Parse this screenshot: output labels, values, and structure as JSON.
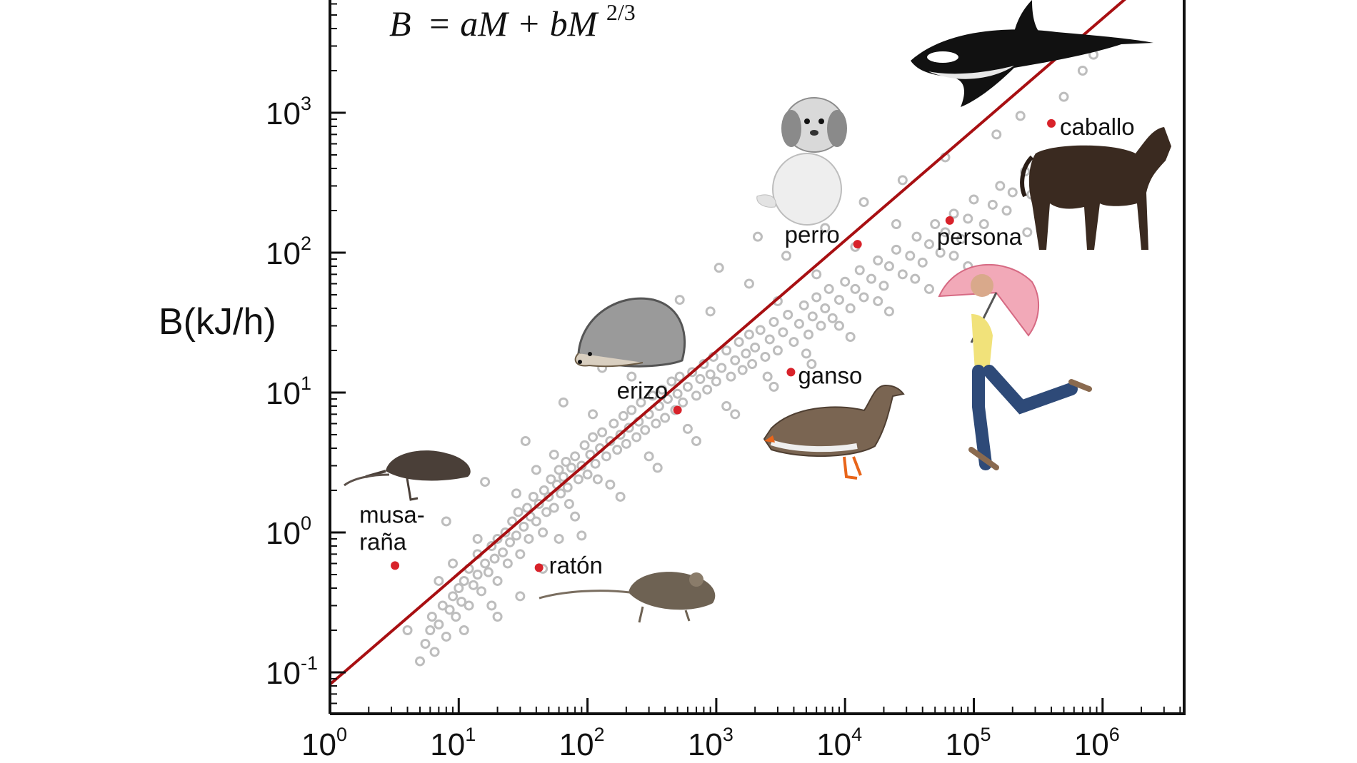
{
  "chart_data": {
    "type": "scatter",
    "title": "",
    "annotation_formula": {
      "lhs": "B",
      "rhs_main": "= aM + bM",
      "exponent": "2/3"
    },
    "ylabel": "B(kJ/h)",
    "xlabel": "",
    "x_scale": "log",
    "y_scale": "log",
    "xlim": [
      1,
      4300000
    ],
    "ylim": [
      0.05,
      15000
    ],
    "grid": false,
    "x_ticks": [
      {
        "value": 1,
        "base": "10",
        "exp": "0"
      },
      {
        "value": 10,
        "base": "10",
        "exp": "1"
      },
      {
        "value": 100,
        "base": "10",
        "exp": "2"
      },
      {
        "value": 1000,
        "base": "10",
        "exp": "3"
      },
      {
        "value": 10000,
        "base": "10",
        "exp": "4"
      },
      {
        "value": 100000,
        "base": "10",
        "exp": "5"
      },
      {
        "value": 1000000,
        "base": "10",
        "exp": "6"
      }
    ],
    "y_ticks": [
      {
        "value": 0.1,
        "base": "10",
        "exp": "-1"
      },
      {
        "value": 1,
        "base": "10",
        "exp": "0"
      },
      {
        "value": 10,
        "base": "10",
        "exp": "1"
      },
      {
        "value": 100,
        "base": "10",
        "exp": "2"
      },
      {
        "value": 1000,
        "base": "10",
        "exp": "3"
      }
    ],
    "fit_line": {
      "color": "#a80f12",
      "points": [
        [
          1,
          0.082
        ],
        [
          4300000,
          15000
        ]
      ]
    },
    "highlighted": [
      {
        "label": "musa-",
        "label2": "raña",
        "x": 3.2,
        "y": 0.58
      },
      {
        "label": "ratón",
        "x": 42,
        "y": 0.56
      },
      {
        "label": "erizo",
        "x": 500,
        "y": 7.5
      },
      {
        "label": "ganso",
        "x": 3800,
        "y": 14
      },
      {
        "label": "perro",
        "x": 12500,
        "y": 115
      },
      {
        "label": "persona",
        "x": 65000,
        "y": 170
      },
      {
        "label": "caballo",
        "x": 400000,
        "y": 840
      }
    ],
    "background_points_color": "#bdbdbd",
    "highlight_color": "#d8222a",
    "background_points": [
      [
        5.0,
        0.12
      ],
      [
        5.5,
        0.16
      ],
      [
        6.0,
        0.2
      ],
      [
        6.2,
        0.25
      ],
      [
        7.0,
        0.22
      ],
      [
        7.5,
        0.3
      ],
      [
        8.0,
        0.18
      ],
      [
        8.5,
        0.28
      ],
      [
        9.0,
        0.35
      ],
      [
        9.5,
        0.25
      ],
      [
        10,
        0.4
      ],
      [
        10.5,
        0.32
      ],
      [
        11,
        0.45
      ],
      [
        12,
        0.3
      ],
      [
        12,
        0.55
      ],
      [
        13,
        0.42
      ],
      [
        14,
        0.5
      ],
      [
        14,
        0.7
      ],
      [
        15,
        0.38
      ],
      [
        16,
        0.6
      ],
      [
        17,
        0.52
      ],
      [
        18,
        0.8
      ],
      [
        19,
        0.65
      ],
      [
        20,
        0.45
      ],
      [
        20,
        0.9
      ],
      [
        22,
        0.72
      ],
      [
        23,
        1.0
      ],
      [
        24,
        0.6
      ],
      [
        25,
        0.85
      ],
      [
        26,
        1.2
      ],
      [
        28,
        0.95
      ],
      [
        29,
        1.4
      ],
      [
        30,
        0.7
      ],
      [
        32,
        1.1
      ],
      [
        34,
        1.5
      ],
      [
        35,
        0.9
      ],
      [
        36,
        1.3
      ],
      [
        38,
        1.8
      ],
      [
        40,
        1.2
      ],
      [
        42,
        1.6
      ],
      [
        45,
        1.0
      ],
      [
        46,
        2.0
      ],
      [
        48,
        1.4
      ],
      [
        50,
        1.8
      ],
      [
        52,
        2.4
      ],
      [
        55,
        1.5
      ],
      [
        58,
        2.2
      ],
      [
        60,
        2.8
      ],
      [
        62,
        1.9
      ],
      [
        65,
        2.5
      ],
      [
        68,
        3.2
      ],
      [
        70,
        2.1
      ],
      [
        72,
        1.6
      ],
      [
        75,
        2.9
      ],
      [
        80,
        3.5
      ],
      [
        85,
        2.4
      ],
      [
        90,
        3.0
      ],
      [
        95,
        4.2
      ],
      [
        100,
        2.6
      ],
      [
        105,
        3.6
      ],
      [
        110,
        4.8
      ],
      [
        115,
        3.1
      ],
      [
        120,
        2.4
      ],
      [
        125,
        4.0
      ],
      [
        130,
        5.2
      ],
      [
        140,
        3.5
      ],
      [
        150,
        4.5
      ],
      [
        160,
        6.0
      ],
      [
        170,
        3.9
      ],
      [
        180,
        5.0
      ],
      [
        190,
        6.8
      ],
      [
        200,
        4.3
      ],
      [
        210,
        5.6
      ],
      [
        220,
        7.5
      ],
      [
        240,
        4.8
      ],
      [
        250,
        6.2
      ],
      [
        260,
        8.5
      ],
      [
        280,
        5.4
      ],
      [
        300,
        7.0
      ],
      [
        320,
        9.5
      ],
      [
        340,
        6.0
      ],
      [
        360,
        8.0
      ],
      [
        380,
        10.5
      ],
      [
        400,
        6.6
      ],
      [
        420,
        9.0
      ],
      [
        450,
        12
      ],
      [
        480,
        7.5
      ],
      [
        500,
        9.8
      ],
      [
        520,
        13
      ],
      [
        550,
        8.5
      ],
      [
        600,
        11
      ],
      [
        650,
        14
      ],
      [
        700,
        9.5
      ],
      [
        750,
        12.5
      ],
      [
        800,
        16
      ],
      [
        850,
        10.5
      ],
      [
        900,
        13.5
      ],
      [
        950,
        18
      ],
      [
        1000,
        12
      ],
      [
        1100,
        15
      ],
      [
        1200,
        20
      ],
      [
        1300,
        13
      ],
      [
        1400,
        17
      ],
      [
        1500,
        23
      ],
      [
        1600,
        14.5
      ],
      [
        1700,
        19
      ],
      [
        1800,
        26
      ],
      [
        1900,
        16
      ],
      [
        2000,
        21
      ],
      [
        2200,
        28
      ],
      [
        2400,
        18
      ],
      [
        2600,
        24
      ],
      [
        2800,
        32
      ],
      [
        3000,
        20
      ],
      [
        3300,
        27
      ],
      [
        3600,
        36
      ],
      [
        4000,
        23
      ],
      [
        4400,
        31
      ],
      [
        4800,
        42
      ],
      [
        5200,
        26
      ],
      [
        5600,
        35
      ],
      [
        6000,
        48
      ],
      [
        6500,
        30
      ],
      [
        7000,
        40
      ],
      [
        7500,
        55
      ],
      [
        8000,
        34
      ],
      [
        9000,
        46
      ],
      [
        10000,
        62
      ],
      [
        11000,
        40
      ],
      [
        12000,
        55
      ],
      [
        13000,
        75
      ],
      [
        14000,
        48
      ],
      [
        16000,
        65
      ],
      [
        18000,
        88
      ],
      [
        20000,
        58
      ],
      [
        22000,
        80
      ],
      [
        25000,
        105
      ],
      [
        28000,
        70
      ],
      [
        32000,
        95
      ],
      [
        36000,
        130
      ],
      [
        40000,
        85
      ],
      [
        45000,
        115
      ],
      [
        50000,
        160
      ],
      [
        55000,
        100
      ],
      [
        60000,
        140
      ],
      [
        70000,
        190
      ],
      [
        80000,
        125
      ],
      [
        90000,
        175
      ],
      [
        100000,
        240
      ],
      [
        120000,
        160
      ],
      [
        140000,
        220
      ],
      [
        160000,
        300
      ],
      [
        180000,
        200
      ],
      [
        200000,
        270
      ],
      [
        250000,
        380
      ],
      [
        280000,
        260
      ],
      [
        320000,
        350
      ],
      [
        380000,
        480
      ],
      [
        450000,
        330
      ],
      [
        520000,
        460
      ],
      [
        30,
        0.35
      ],
      [
        60,
        0.9
      ],
      [
        9,
        0.6
      ],
      [
        18,
        0.3
      ],
      [
        40,
        2.8
      ],
      [
        80,
        1.3
      ],
      [
        150,
        2.2
      ],
      [
        300,
        3.5
      ],
      [
        600,
        5.5
      ],
      [
        1200,
        8
      ],
      [
        2500,
        13
      ],
      [
        5000,
        19
      ],
      [
        9000,
        30
      ],
      [
        18000,
        45
      ],
      [
        35000,
        65
      ],
      [
        70000,
        95
      ],
      [
        7,
        0.45
      ],
      [
        14,
        0.9
      ],
      [
        28,
        1.9
      ],
      [
        55,
        3.6
      ],
      [
        110,
        7
      ],
      [
        220,
        13
      ],
      [
        450,
        22
      ],
      [
        900,
        38
      ],
      [
        1800,
        60
      ],
      [
        3500,
        95
      ],
      [
        7000,
        150
      ],
      [
        14000,
        230
      ],
      [
        28000,
        330
      ],
      [
        60000,
        480
      ],
      [
        4,
        0.2
      ],
      [
        6.5,
        0.14
      ],
      [
        11,
        0.2
      ],
      [
        20,
        0.25
      ],
      [
        45,
        0.55
      ],
      [
        90,
        0.95
      ],
      [
        180,
        1.8
      ],
      [
        350,
        2.9
      ],
      [
        700,
        4.5
      ],
      [
        1400,
        7
      ],
      [
        2800,
        11
      ],
      [
        5500,
        16
      ],
      [
        11000,
        25
      ],
      [
        22000,
        38
      ],
      [
        45000,
        55
      ],
      [
        90000,
        80
      ],
      [
        260000,
        140
      ],
      [
        3000,
        45
      ],
      [
        6000,
        70
      ],
      [
        12000,
        110
      ],
      [
        25000,
        160
      ],
      [
        8,
        1.2
      ],
      [
        16,
        2.3
      ],
      [
        33,
        4.5
      ],
      [
        65,
        8.5
      ],
      [
        130,
        15
      ],
      [
        260,
        27
      ],
      [
        520,
        46
      ],
      [
        1050,
        78
      ],
      [
        2100,
        130
      ],
      [
        500000,
        1300
      ],
      [
        700000,
        2000
      ],
      [
        850000,
        2600
      ],
      [
        150000,
        700
      ],
      [
        230000,
        950
      ]
    ]
  }
}
